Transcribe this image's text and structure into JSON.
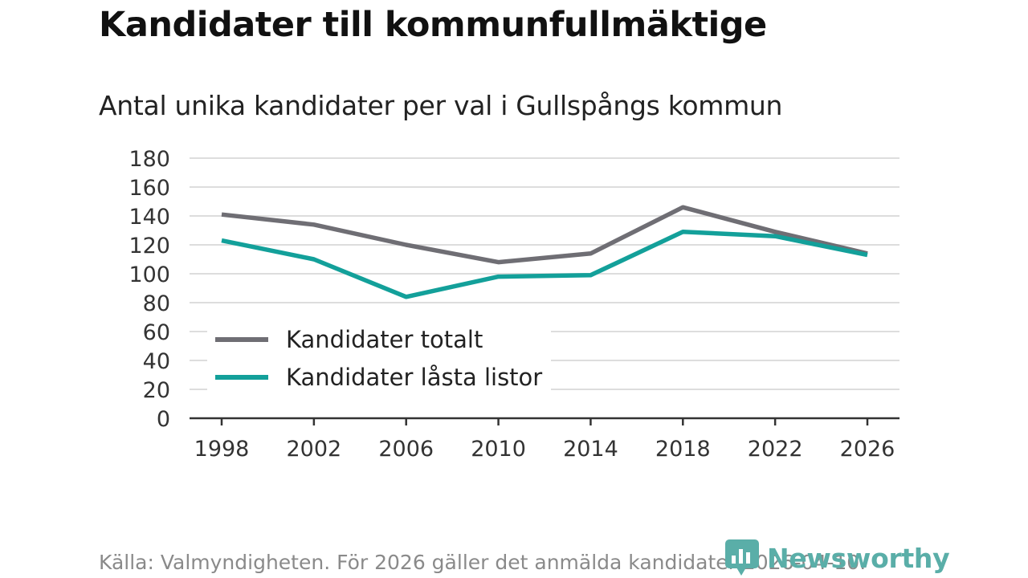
{
  "title": "Kandidater till kommunfullmäktige",
  "subtitle": "Antal unika kandidater per val i Gullspångs kommun",
  "source": "Källa: Valmyndigheten. För 2026 gäller det anmälda kandidater 2026-04-10.",
  "brand": {
    "name": "Newsworthy",
    "logo_icon": "bar-chart-speech-bubble-icon"
  },
  "colors": {
    "total": "#6f6e74",
    "locked": "#13a09a",
    "grid": "#dddddd",
    "axis": "#333333",
    "brand": "#5aaea8"
  },
  "chart_data": {
    "type": "line",
    "title": "Kandidater till kommunfullmäktige",
    "subtitle": "Antal unika kandidater per val i Gullspångs kommun",
    "xlabel": "",
    "ylabel": "",
    "x": [
      "1998",
      "2002",
      "2006",
      "2010",
      "2014",
      "2018",
      "2022",
      "2026"
    ],
    "ylim": [
      0,
      180
    ],
    "yticks": [
      0,
      20,
      40,
      60,
      80,
      100,
      120,
      140,
      160,
      180
    ],
    "grid": true,
    "legend_position": "lower-left",
    "series": [
      {
        "name": "Kandidater totalt",
        "color": "#6f6e74",
        "values": [
          141,
          134,
          120,
          108,
          114,
          146,
          129,
          114
        ]
      },
      {
        "name": "Kandidater låsta listor",
        "color": "#13a09a",
        "values": [
          123,
          110,
          84,
          98,
          99,
          129,
          126,
          113
        ]
      }
    ]
  }
}
